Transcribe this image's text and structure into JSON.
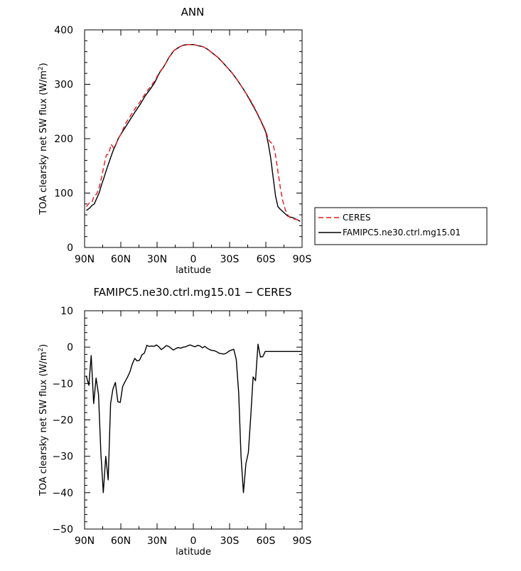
{
  "chart_data": [
    {
      "type": "line",
      "title": "ANN",
      "xlabel": "latitude",
      "ylabel": "TOA clearsky net SW flux (W/m²)",
      "ylabel_main": "TOA clearsky net SW flux (W/m",
      "ylabel_sup": "2",
      "ylabel_close": ")",
      "xlim": [
        90,
        -90
      ],
      "ylim": [
        0,
        400
      ],
      "xticks": [
        90,
        60,
        30,
        0,
        -30,
        -60,
        -90
      ],
      "xtick_labels": [
        "90N",
        "60N",
        "30N",
        "0",
        "30S",
        "60S",
        "90S"
      ],
      "yticks": [
        0,
        100,
        200,
        300,
        400
      ],
      "ytick_labels": [
        "0",
        "100",
        "200",
        "300",
        "400"
      ],
      "legend_position": "right, outside the plot",
      "series": [
        {
          "name": "CERES",
          "color": "#e8161b",
          "style": "dashed",
          "x": [
            88.5,
            86,
            84,
            82,
            80,
            78,
            76,
            74,
            72,
            70,
            68,
            66,
            64,
            62,
            60,
            56,
            52,
            48,
            44,
            40,
            36,
            32,
            28,
            24,
            20,
            16,
            12,
            8,
            4,
            0,
            -4,
            -8,
            -12,
            -16,
            -20,
            -24,
            -28,
            -32,
            -36,
            -40,
            -44,
            -48,
            -52,
            -56,
            -60,
            -62,
            -64,
            -66,
            -68,
            -70,
            -72,
            -74,
            -76,
            -78,
            -80,
            -82,
            -84,
            -86,
            -88.5
          ],
          "y": [
            75,
            82,
            83,
            95,
            98,
            110,
            128,
            150,
            170,
            172,
            190,
            183,
            190,
            200,
            208,
            228,
            242,
            256,
            268,
            282,
            294,
            306,
            322,
            334,
            350,
            362,
            368,
            372,
            373,
            373,
            371,
            369,
            364,
            357,
            350,
            341,
            331,
            321,
            309,
            296,
            282,
            268,
            251,
            233,
            214,
            199,
            193,
            190,
            170,
            140,
            110,
            86,
            70,
            60,
            55,
            53,
            52,
            51,
            48
          ]
        },
        {
          "name": "FAMIPC5.ne30.ctrl.mg15.01",
          "color": "#000000",
          "style": "solid",
          "x": [
            88.5,
            86,
            84,
            82,
            80,
            78,
            76,
            74,
            72,
            70,
            68,
            66,
            64,
            62,
            60,
            56,
            52,
            48,
            44,
            40,
            36,
            32,
            28,
            24,
            20,
            16,
            12,
            8,
            4,
            0,
            -4,
            -8,
            -12,
            -16,
            -20,
            -24,
            -28,
            -32,
            -36,
            -40,
            -44,
            -48,
            -52,
            -56,
            -60,
            -62,
            -64,
            -66,
            -68,
            -70,
            -72,
            -74,
            -76,
            -78,
            -80,
            -82,
            -84,
            -86,
            -88.5
          ],
          "y": [
            68,
            72,
            77,
            80,
            90,
            100,
            115,
            128,
            142,
            155,
            168,
            180,
            190,
            201,
            208,
            222,
            236,
            250,
            263,
            278,
            290,
            303,
            321,
            334,
            350,
            362,
            368,
            372,
            373,
            373,
            371,
            369,
            364,
            357,
            350,
            341,
            331,
            321,
            309,
            296,
            282,
            266,
            250,
            232,
            212,
            191,
            165,
            130,
            95,
            75,
            70,
            66,
            62,
            58,
            56,
            55,
            53,
            51,
            48
          ]
        }
      ]
    },
    {
      "type": "line",
      "title": "FAMIPC5.ne30.ctrl.mg15.01 − CERES",
      "xlabel": "latitude",
      "ylabel": "TOA clearsky net SW flux (W/m²)",
      "ylabel_main": "TOA clearsky net SW flux (W/m",
      "ylabel_sup": "2",
      "ylabel_close": ")",
      "xlim": [
        90,
        -90
      ],
      "ylim": [
        -50,
        10
      ],
      "xticks": [
        90,
        60,
        30,
        0,
        -30,
        -60,
        -90
      ],
      "xtick_labels": [
        "90N",
        "60N",
        "30N",
        "0",
        "30S",
        "60S",
        "90S"
      ],
      "yticks": [
        -50,
        -40,
        -30,
        -20,
        -10,
        0,
        10
      ],
      "ytick_labels": [
        "−50",
        "−40",
        "−30",
        "−20",
        "−10",
        "0",
        "10"
      ],
      "series": [
        {
          "name": "",
          "color": "#000000",
          "style": "solid",
          "x": [
            88.5,
            86.5,
            84.5,
            82.5,
            80.5,
            78.5,
            76.5,
            74.5,
            72.5,
            70.5,
            68.5,
            66.5,
            64.5,
            62.5,
            60.5,
            58.5,
            56.5,
            54.5,
            52.5,
            50.5,
            48.5,
            46.5,
            44.5,
            42.5,
            40.5,
            38.5,
            36.5,
            34.5,
            32.5,
            30.5,
            28.5,
            26.5,
            24.5,
            22.5,
            20.5,
            18.5,
            16.5,
            14.5,
            12.5,
            10.5,
            8.5,
            6.5,
            4.5,
            2.5,
            0.5,
            -1.5,
            -3.5,
            -5.5,
            -7.5,
            -9.5,
            -11.5,
            -13.5,
            -15.5,
            -17.5,
            -19.5,
            -21.5,
            -23.5,
            -25.5,
            -27.5,
            -29.5,
            -31.5,
            -33.5,
            -35.5,
            -37.5,
            -39.5,
            -41.5,
            -43.5,
            -45.5,
            -47.5,
            -49.5,
            -51.5,
            -53.5,
            -55.5,
            -57.5,
            -59.5,
            -61.5,
            -63.5,
            -65.5,
            -67.5,
            -69.5,
            -71.5,
            -73.5,
            -75.5,
            -77.5,
            -79.5,
            -81.5,
            -83.5,
            -85.5,
            -87.5,
            -89.5
          ],
          "y": [
            -8,
            -10.5,
            -2.3,
            -15.5,
            -8.5,
            -13,
            -29,
            -40,
            -30,
            -36.5,
            -15.5,
            -11.5,
            -9.7,
            -15,
            -15.2,
            -10.8,
            -9.5,
            -8.3,
            -6.8,
            -4.6,
            -3.1,
            -3.8,
            -3.6,
            -2.1,
            -1.6,
            0.5,
            0.2,
            0.3,
            0.2,
            0.6,
            0.1,
            -0.7,
            -0.2,
            0.4,
            0.2,
            -0.3,
            -0.8,
            -0.4,
            -0.1,
            -0.3,
            0.0,
            0.1,
            0.4,
            0.6,
            0.3,
            0.1,
            0.5,
            0.3,
            -0.2,
            0.2,
            -0.3,
            -0.7,
            -0.9,
            -1.0,
            -1.3,
            -1.7,
            -1.8,
            -1.9,
            -1.6,
            -1.1,
            -0.8,
            -0.6,
            -3.4,
            -12.5,
            -30,
            -40,
            -32,
            -29,
            -19,
            -8.2,
            -9.2,
            0.8,
            -2.7,
            -2.6,
            -1.2,
            -1.2,
            -1.2,
            -1.2,
            -1.2,
            -1.2,
            -1.2,
            -1.2,
            -1.2,
            -1.2,
            -1.2,
            -1.2,
            -1.2,
            -1.2,
            -1.2,
            -1.2
          ]
        }
      ]
    }
  ]
}
